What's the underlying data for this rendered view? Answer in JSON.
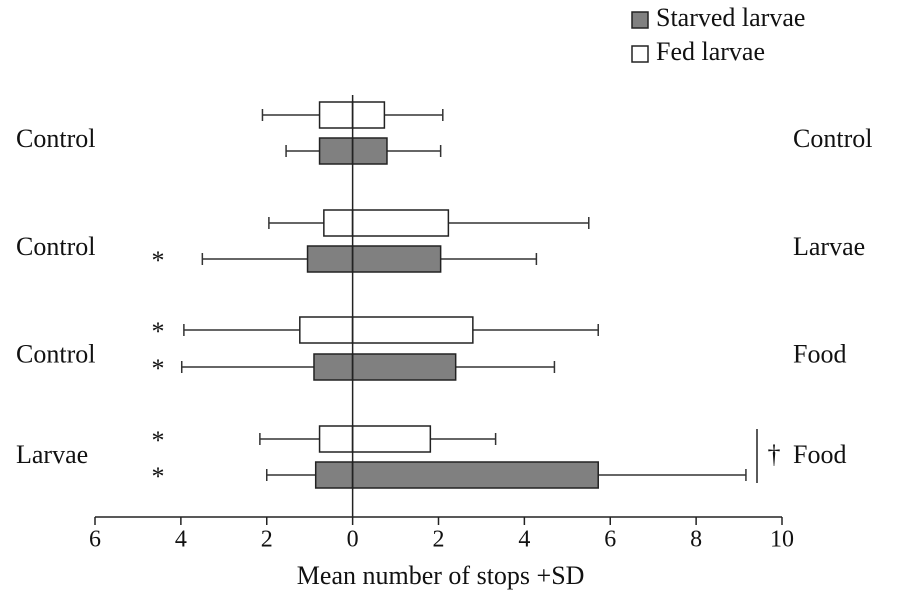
{
  "chart_data": {
    "type": "bar",
    "orientation": "horizontal",
    "xlabel": "Mean number of stops +SD",
    "xlim": [
      -6,
      10
    ],
    "xticks": [
      {
        "value": -6,
        "label": "6"
      },
      {
        "value": -4,
        "label": "4"
      },
      {
        "value": -2,
        "label": "2"
      },
      0,
      2,
      4,
      6,
      8,
      10
    ],
    "left_labels": [
      "Control",
      "Control",
      "Control",
      "Larvae"
    ],
    "right_labels": [
      "Control",
      "Larvae",
      "Food",
      "Food"
    ],
    "series": [
      {
        "name": "Fed larvae",
        "color": "#ffffff",
        "left": [
          -0.77,
          -0.67,
          -1.23,
          -0.77
        ],
        "right": [
          0.74,
          2.23,
          2.8,
          1.81
        ],
        "left_sd": [
          1.33,
          1.28,
          2.7,
          1.39
        ],
        "right_sd": [
          1.36,
          3.27,
          2.92,
          1.52
        ],
        "significance": [
          null,
          null,
          "*",
          "*"
        ]
      },
      {
        "name": "Starved larvae",
        "color": "#808080",
        "left": [
          -0.77,
          -1.05,
          -0.9,
          -0.86
        ],
        "right": [
          0.8,
          2.05,
          2.4,
          5.72
        ],
        "left_sd": [
          0.78,
          2.45,
          3.08,
          1.14
        ],
        "right_sd": [
          1.25,
          2.23,
          2.3,
          3.44
        ],
        "significance": [
          null,
          "*",
          "*",
          "*"
        ]
      }
    ],
    "annotations": [
      {
        "text": "†",
        "group": 3
      }
    ]
  }
}
